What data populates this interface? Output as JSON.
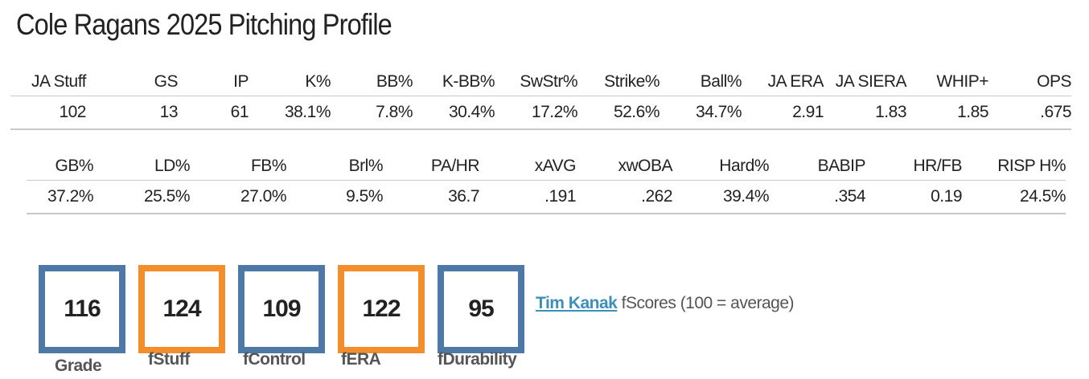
{
  "title": "Cole Ragans 2025 Pitching Profile",
  "table1": {
    "headers": [
      "JA Stuff",
      "GS",
      "IP",
      "K%",
      "BB%",
      "K-BB%",
      "SwStr%",
      "Strike%",
      "Ball%",
      "JA ERA",
      "JA SIERA",
      "WHIP+",
      "OPS"
    ],
    "values": [
      "102",
      "13",
      "61",
      "38.1%",
      "7.8%",
      "30.4%",
      "17.2%",
      "52.6%",
      "34.7%",
      "2.91",
      "1.83",
      "1.85",
      ".675"
    ]
  },
  "table2": {
    "headers": [
      "GB%",
      "LD%",
      "FB%",
      "Brl%",
      "PA/HR",
      "xAVG",
      "xwOBA",
      "Hard%",
      "BABIP",
      "HR/FB",
      "RISP H%"
    ],
    "values": [
      "37.2%",
      "25.5%",
      "27.0%",
      "9.5%",
      "36.7",
      ".191",
      ".262",
      "39.4%",
      ".354",
      "0.19",
      "24.5%"
    ]
  },
  "scores": [
    {
      "label": "Grade",
      "value": "116",
      "color": "#4e79a7"
    },
    {
      "label": "fStuff",
      "value": "124",
      "color": "#f28e2b"
    },
    {
      "label": "fControl",
      "value": "109",
      "color": "#4e79a7"
    },
    {
      "label": "fERA",
      "value": "122",
      "color": "#f28e2b"
    },
    {
      "label": "fDurability",
      "value": "95",
      "color": "#4e79a7"
    }
  ],
  "attribution": {
    "link_text": "Tim Kanak",
    "text": " fScores (100 = average)"
  },
  "colors": {
    "blue": "#4e79a7",
    "orange": "#f28e2b",
    "link": "#3d8fb8"
  }
}
